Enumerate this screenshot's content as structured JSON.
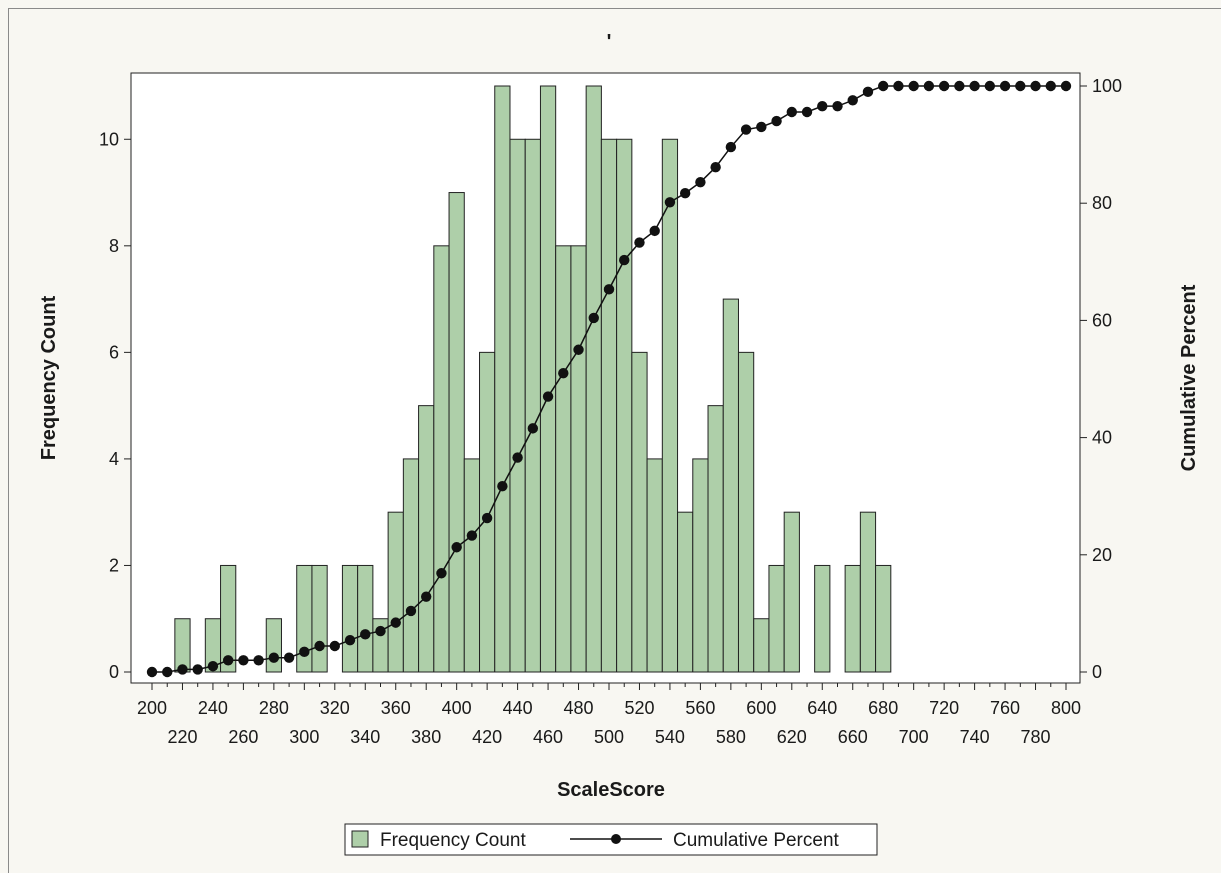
{
  "chart_data": {
    "type": "bar",
    "title": "'",
    "xlabel": "ScaleScore",
    "ylabel": "Frequency Count",
    "y2label": "Cumulative Percent",
    "xlim": [
      200,
      800
    ],
    "ylim": [
      0,
      11
    ],
    "y2lim": [
      0,
      100
    ],
    "x_ticks_row1": [
      "200",
      "240",
      "280",
      "320",
      "360",
      "400",
      "440",
      "480",
      "520",
      "560",
      "600",
      "640",
      "680",
      "720",
      "760",
      "800"
    ],
    "x_ticks_row2": [
      "220",
      "260",
      "300",
      "340",
      "380",
      "420",
      "460",
      "500",
      "540",
      "580",
      "620",
      "660",
      "700",
      "740",
      "780"
    ],
    "y_ticks": [
      "0",
      "2",
      "4",
      "6",
      "8",
      "10"
    ],
    "y2_ticks": [
      "0",
      "20",
      "40",
      "60",
      "80",
      "100"
    ],
    "colors": {
      "bar": "#aecfa9",
      "line": "#111111",
      "frame": "#8a8a8a",
      "background": "#f8f7f2",
      "plot_background": "#ffffff"
    },
    "series": [
      {
        "name": "Frequency Count",
        "type": "bar",
        "x": [
          220,
          230,
          240,
          250,
          260,
          270,
          280,
          290,
          300,
          310,
          320,
          330,
          340,
          350,
          360,
          370,
          380,
          390,
          400,
          410,
          420,
          430,
          440,
          450,
          460,
          470,
          480,
          490,
          500,
          510,
          520,
          530,
          540,
          550,
          560,
          570,
          580,
          590,
          600,
          610,
          620,
          630,
          640,
          650,
          660,
          670,
          680
        ],
        "values": [
          1,
          0,
          1,
          2,
          0,
          0,
          1,
          0,
          2,
          2,
          0,
          2,
          2,
          1,
          3,
          4,
          5,
          8,
          9,
          4,
          6,
          11,
          10,
          10,
          11,
          8,
          8,
          11,
          10,
          10,
          6,
          4,
          10,
          3,
          4,
          5,
          7,
          6,
          1,
          2,
          3,
          0,
          2,
          0,
          2,
          3,
          2
        ]
      },
      {
        "name": "Cumulative Percent",
        "type": "line",
        "x": [
          200,
          210,
          220,
          230,
          240,
          250,
          260,
          270,
          280,
          290,
          300,
          310,
          320,
          330,
          340,
          350,
          360,
          370,
          380,
          390,
          400,
          410,
          420,
          430,
          440,
          450,
          460,
          470,
          480,
          490,
          500,
          510,
          520,
          530,
          540,
          550,
          560,
          570,
          580,
          590,
          600,
          610,
          620,
          630,
          640,
          650,
          660,
          670,
          680,
          690,
          700,
          710,
          720,
          730,
          740,
          750,
          760,
          770,
          780,
          790,
          800
        ],
        "values": [
          0,
          0,
          0.4,
          0.4,
          0.9,
          1.8,
          1.8,
          1.8,
          2.2,
          2.2,
          3.1,
          4.0,
          4.0,
          4.9,
          5.8,
          6.3,
          7.6,
          9.4,
          11.6,
          15.2,
          19.2,
          21.0,
          23.7,
          28.6,
          33.0,
          37.5,
          42.4,
          46.0,
          49.6,
          54.5,
          58.9,
          63.4,
          66.1,
          67.9,
          72.3,
          73.7,
          75.4,
          77.7,
          80.8,
          83.5,
          83.9,
          84.8,
          86.2,
          86.2,
          87.1,
          87.1,
          88.0,
          89.3,
          90.2,
          90.2,
          90.2,
          90.2,
          90.2,
          90.2,
          90.2,
          90.2,
          90.2,
          90.2,
          90.2,
          90.2,
          90.2
        ]
      }
    ],
    "legend": {
      "position": "bottom-center",
      "items": [
        {
          "label": "Frequency Count",
          "symbol": "box"
        },
        {
          "label": "Cumulative Percent",
          "symbol": "line-marker"
        }
      ]
    }
  }
}
